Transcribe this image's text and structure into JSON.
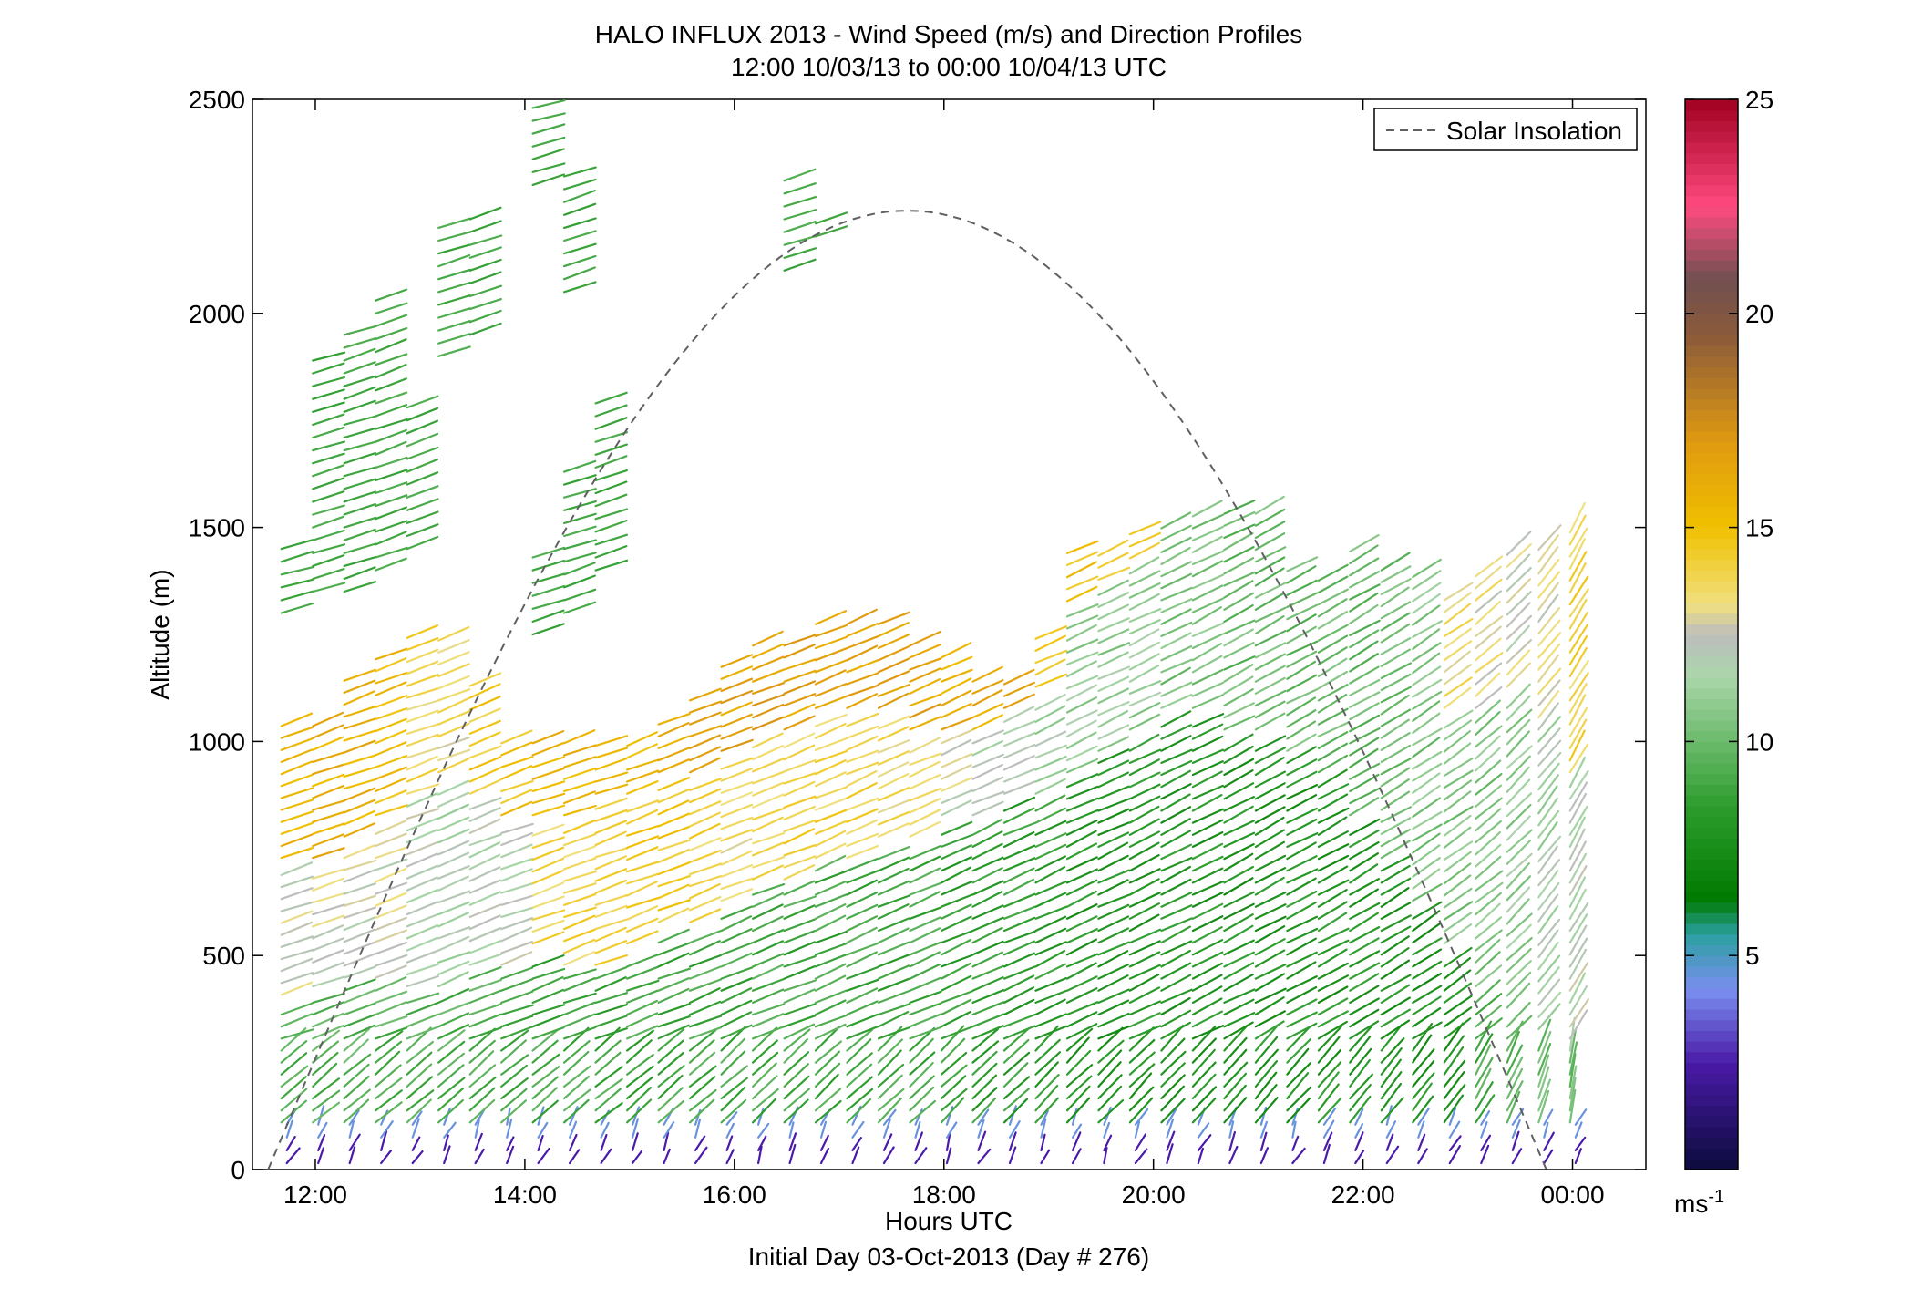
{
  "chart_data": {
    "type": "wind-barb-profile",
    "title": "HALO INFLUX 2013 - Wind Speed (m/s) and Direction Profiles",
    "subtitle": "12:00 10/03/13 to 00:00 10/04/13  UTC",
    "xlabel": "Hours UTC",
    "xlabel2": "Initial Day 03-Oct-2013 (Day # 276)",
    "ylabel": "Altitude (m)",
    "xlim_hours": [
      11.4,
      24.7
    ],
    "ylim": [
      0,
      2500
    ],
    "x_ticks": [
      {
        "hour": 12,
        "label": "12:00"
      },
      {
        "hour": 14,
        "label": "14:00"
      },
      {
        "hour": 16,
        "label": "16:00"
      },
      {
        "hour": 18,
        "label": "18:00"
      },
      {
        "hour": 20,
        "label": "20:00"
      },
      {
        "hour": 22,
        "label": "22:00"
      },
      {
        "hour": 24,
        "label": "00:00"
      }
    ],
    "y_ticks": [
      0,
      500,
      1000,
      1500,
      2000,
      2500
    ],
    "colorbar": {
      "label": "ms",
      "label_superscript": "-1",
      "range": [
        0,
        25
      ],
      "ticks": [
        5,
        10,
        15,
        20,
        25
      ],
      "stops": [
        {
          "v": 0,
          "c": "#0b0b3a"
        },
        {
          "v": 2.5,
          "c": "#4a1aa8"
        },
        {
          "v": 4.2,
          "c": "#7a8ef0"
        },
        {
          "v": 5.5,
          "c": "#2aa0a0"
        },
        {
          "v": 6.3,
          "c": "#007a00"
        },
        {
          "v": 8.5,
          "c": "#2d9d2d"
        },
        {
          "v": 11.5,
          "c": "#a9d6a9"
        },
        {
          "v": 12.5,
          "c": "#bdbdbd"
        },
        {
          "v": 13.2,
          "c": "#f0e080"
        },
        {
          "v": 15,
          "c": "#f0c000"
        },
        {
          "v": 17,
          "c": "#e09a10"
        },
        {
          "v": 19.5,
          "c": "#8a5a3a"
        },
        {
          "v": 20.8,
          "c": "#705050"
        },
        {
          "v": 22.5,
          "c": "#ff4a80"
        },
        {
          "v": 25,
          "c": "#a00020"
        }
      ]
    },
    "legend": {
      "position": "top-right",
      "entries": [
        {
          "label": "Solar Insolation",
          "style": "dashed",
          "color": "#606060"
        }
      ]
    },
    "solar_insolation": {
      "start_hour": 11.55,
      "peak_hour": 17.65,
      "end_hour": 23.75,
      "peak_altitude_equiv": 2240
    },
    "profiles": [
      {
        "hour": 11.85,
        "top": 1050,
        "dir": 19,
        "segments": [
          {
            "top": 380,
            "speed": 9.5
          },
          {
            "top": 700,
            "speed": 12.5
          },
          {
            "top": 1050,
            "speed": 15.5
          }
        ]
      },
      {
        "hour": 12.15,
        "top": 1050,
        "dir": 20,
        "segments": [
          {
            "top": 400,
            "speed": 9.5
          },
          {
            "top": 700,
            "speed": 12.5
          },
          {
            "top": 1050,
            "speed": 15.8
          }
        ]
      },
      {
        "hour": 12.45,
        "top": 1150,
        "dir": 20,
        "segments": [
          {
            "top": 420,
            "speed": 9.5
          },
          {
            "top": 750,
            "speed": 12.5
          },
          {
            "top": 1150,
            "speed": 15.8
          }
        ]
      },
      {
        "hour": 12.75,
        "top": 1200,
        "dir": 20,
        "segments": [
          {
            "top": 420,
            "speed": 9.5
          },
          {
            "top": 800,
            "speed": 12.5
          },
          {
            "top": 1200,
            "speed": 15.2
          }
        ]
      },
      {
        "hour": 13.05,
        "top": 1250,
        "dir": 20,
        "segments": [
          {
            "top": 400,
            "speed": 9.5
          },
          {
            "top": 850,
            "speed": 12
          },
          {
            "top": 1250,
            "speed": 13.8
          }
        ]
      },
      {
        "hour": 13.35,
        "top": 1250,
        "dir": 22,
        "segments": [
          {
            "top": 400,
            "speed": 9.5
          },
          {
            "top": 900,
            "speed": 11.5
          },
          {
            "top": 1250,
            "speed": 13.5
          }
        ]
      },
      {
        "hour": 13.65,
        "top": 1150,
        "dir": 22,
        "segments": [
          {
            "top": 450,
            "speed": 9.5
          },
          {
            "top": 850,
            "speed": 12
          },
          {
            "top": 1150,
            "speed": 14.5
          }
        ]
      },
      {
        "hour": 13.95,
        "top": 1000,
        "dir": 20,
        "segments": [
          {
            "top": 450,
            "speed": 9
          },
          {
            "top": 800,
            "speed": 12
          },
          {
            "top": 1000,
            "speed": 15
          }
        ]
      },
      {
        "hour": 14.25,
        "top": 1000,
        "dir": 20,
        "segments": [
          {
            "top": 500,
            "speed": 9
          },
          {
            "top": 800,
            "speed": 14
          },
          {
            "top": 1000,
            "speed": 15.5
          }
        ]
      },
      {
        "hour": 14.55,
        "top": 1000,
        "dir": 20,
        "segments": [
          {
            "top": 450,
            "speed": 9
          },
          {
            "top": 800,
            "speed": 14
          },
          {
            "top": 1000,
            "speed": 15.5
          }
        ]
      },
      {
        "hour": 14.85,
        "top": 1000,
        "dir": 20,
        "segments": [
          {
            "top": 450,
            "speed": 9
          },
          {
            "top": 850,
            "speed": 14
          },
          {
            "top": 1000,
            "speed": 15.5
          }
        ]
      },
      {
        "hour": 15.15,
        "top": 1000,
        "dir": 21,
        "segments": [
          {
            "top": 500,
            "speed": 9
          },
          {
            "top": 850,
            "speed": 14.5
          },
          {
            "top": 1000,
            "speed": 15.5
          }
        ]
      },
      {
        "hour": 15.45,
        "top": 1050,
        "dir": 21,
        "segments": [
          {
            "top": 550,
            "speed": 9
          },
          {
            "top": 900,
            "speed": 14.5
          },
          {
            "top": 1050,
            "speed": 16
          }
        ]
      },
      {
        "hour": 15.75,
        "top": 1100,
        "dir": 22,
        "segments": [
          {
            "top": 550,
            "speed": 9
          },
          {
            "top": 900,
            "speed": 14
          },
          {
            "top": 1100,
            "speed": 16.2
          }
        ]
      },
      {
        "hour": 16.05,
        "top": 1200,
        "dir": 22,
        "segments": [
          {
            "top": 600,
            "speed": 9
          },
          {
            "top": 950,
            "speed": 13.5
          },
          {
            "top": 1200,
            "speed": 16.5
          }
        ]
      },
      {
        "hour": 16.35,
        "top": 1250,
        "dir": 22,
        "segments": [
          {
            "top": 650,
            "speed": 9
          },
          {
            "top": 1000,
            "speed": 14
          },
          {
            "top": 1250,
            "speed": 16.5
          }
        ]
      },
      {
        "hour": 16.65,
        "top": 1250,
        "dir": 22,
        "segments": [
          {
            "top": 650,
            "speed": 9
          },
          {
            "top": 1000,
            "speed": 14
          },
          {
            "top": 1250,
            "speed": 16.5
          }
        ]
      },
      {
        "hour": 16.95,
        "top": 1300,
        "dir": 23,
        "segments": [
          {
            "top": 700,
            "speed": 9
          },
          {
            "top": 1050,
            "speed": 14
          },
          {
            "top": 1300,
            "speed": 16.5
          }
        ]
      },
      {
        "hour": 17.25,
        "top": 1300,
        "dir": 23,
        "segments": [
          {
            "top": 700,
            "speed": 9
          },
          {
            "top": 1050,
            "speed": 14
          },
          {
            "top": 1300,
            "speed": 16.5
          }
        ]
      },
      {
        "hour": 17.55,
        "top": 1300,
        "dir": 23,
        "segments": [
          {
            "top": 750,
            "speed": 9
          },
          {
            "top": 1050,
            "speed": 13.5
          },
          {
            "top": 1300,
            "speed": 16.5
          }
        ]
      },
      {
        "hour": 17.85,
        "top": 1250,
        "dir": 23,
        "segments": [
          {
            "top": 750,
            "speed": 9
          },
          {
            "top": 1000,
            "speed": 13.5
          },
          {
            "top": 1250,
            "speed": 16.5
          }
        ]
      },
      {
        "hour": 18.15,
        "top": 1200,
        "dir": 24,
        "segments": [
          {
            "top": 800,
            "speed": 8.5
          },
          {
            "top": 1000,
            "speed": 12.5
          },
          {
            "top": 1200,
            "speed": 16
          }
        ]
      },
      {
        "hour": 18.45,
        "top": 1150,
        "dir": 24,
        "segments": [
          {
            "top": 800,
            "speed": 8.5
          },
          {
            "top": 1000,
            "speed": 12
          },
          {
            "top": 1150,
            "speed": 16
          }
        ]
      },
      {
        "hour": 18.75,
        "top": 1150,
        "dir": 24,
        "segments": [
          {
            "top": 850,
            "speed": 8.5
          },
          {
            "top": 1050,
            "speed": 12
          },
          {
            "top": 1150,
            "speed": 16
          }
        ]
      },
      {
        "hour": 19.05,
        "top": 1250,
        "dir": 25,
        "segments": [
          {
            "top": 850,
            "speed": 8.5
          },
          {
            "top": 1100,
            "speed": 11.5
          },
          {
            "top": 1250,
            "speed": 15
          }
        ]
      },
      {
        "hour": 19.35,
        "top": 1450,
        "dir": 25,
        "segments": [
          {
            "top": 900,
            "speed": 8
          },
          {
            "top": 1300,
            "speed": 11
          },
          {
            "top": 1450,
            "speed": 14.8
          }
        ]
      },
      {
        "hour": 19.65,
        "top": 1450,
        "dir": 25,
        "segments": [
          {
            "top": 950,
            "speed": 8
          },
          {
            "top": 1350,
            "speed": 11
          },
          {
            "top": 1450,
            "speed": 14.5
          }
        ]
      },
      {
        "hour": 19.95,
        "top": 1500,
        "dir": 26,
        "segments": [
          {
            "top": 1000,
            "speed": 8
          },
          {
            "top": 1400,
            "speed": 11
          },
          {
            "top": 1500,
            "speed": 14
          }
        ]
      },
      {
        "hour": 20.25,
        "top": 1500,
        "dir": 26,
        "segments": [
          {
            "top": 1050,
            "speed": 8
          },
          {
            "top": 1500,
            "speed": 10.5
          }
        ]
      },
      {
        "hour": 20.55,
        "top": 1550,
        "dir": 27,
        "segments": [
          {
            "top": 1050,
            "speed": 8
          },
          {
            "top": 1550,
            "speed": 10.5
          }
        ]
      },
      {
        "hour": 20.85,
        "top": 1550,
        "dir": 27,
        "segments": [
          {
            "top": 1000,
            "speed": 8
          },
          {
            "top": 1550,
            "speed": 10
          }
        ]
      },
      {
        "hour": 21.15,
        "top": 1550,
        "dir": 28,
        "segments": [
          {
            "top": 1000,
            "speed": 8
          },
          {
            "top": 1550,
            "speed": 10
          }
        ]
      },
      {
        "hour": 21.45,
        "top": 1400,
        "dir": 28,
        "segments": [
          {
            "top": 950,
            "speed": 8
          },
          {
            "top": 1400,
            "speed": 10
          }
        ]
      },
      {
        "hour": 21.75,
        "top": 1400,
        "dir": 29,
        "segments": [
          {
            "top": 900,
            "speed": 8
          },
          {
            "top": 1400,
            "speed": 10
          }
        ]
      },
      {
        "hour": 22.05,
        "top": 1450,
        "dir": 30,
        "segments": [
          {
            "top": 800,
            "speed": 8
          },
          {
            "top": 1450,
            "speed": 10
          }
        ]
      },
      {
        "hour": 22.35,
        "top": 1400,
        "dir": 31,
        "segments": [
          {
            "top": 700,
            "speed": 8
          },
          {
            "top": 1400,
            "speed": 10
          }
        ]
      },
      {
        "hour": 22.65,
        "top": 1400,
        "dir": 33,
        "segments": [
          {
            "top": 600,
            "speed": 8
          },
          {
            "top": 1400,
            "speed": 10.5
          }
        ]
      },
      {
        "hour": 22.95,
        "top": 1350,
        "dir": 35,
        "segments": [
          {
            "top": 500,
            "speed": 8
          },
          {
            "top": 1050,
            "speed": 10.5
          },
          {
            "top": 1350,
            "speed": 13.5
          }
        ]
      },
      {
        "hour": 23.25,
        "top": 1400,
        "dir": 40,
        "segments": [
          {
            "top": 400,
            "speed": 9
          },
          {
            "top": 1050,
            "speed": 10.5
          },
          {
            "top": 1400,
            "speed": 13
          }
        ]
      },
      {
        "hour": 23.55,
        "top": 1450,
        "dir": 45,
        "segments": [
          {
            "top": 350,
            "speed": 9.5
          },
          {
            "top": 1100,
            "speed": 11
          },
          {
            "top": 1450,
            "speed": 12.5
          }
        ]
      },
      {
        "hour": 23.85,
        "top": 1450,
        "dir": 52,
        "segments": [
          {
            "top": 300,
            "speed": 10
          },
          {
            "top": 1000,
            "speed": 11.5
          },
          {
            "top": 1450,
            "speed": 13
          }
        ]
      },
      {
        "hour": 24.15,
        "top": 1500,
        "dir": 60,
        "segments": [
          {
            "top": 250,
            "speed": 10
          },
          {
            "top": 900,
            "speed": 12
          },
          {
            "top": 1500,
            "speed": 14
          }
        ]
      }
    ],
    "upper_layer": [
      {
        "hour": 11.85,
        "from": 1300,
        "to": 1450,
        "dir": 15,
        "speed": 9
      },
      {
        "hour": 12.15,
        "from": 1350,
        "to": 1900,
        "dir": 17,
        "speed": 9
      },
      {
        "hour": 12.45,
        "from": 1350,
        "to": 1950,
        "dir": 18,
        "speed": 9
      },
      {
        "hour": 12.75,
        "from": 1400,
        "to": 2050,
        "dir": 20,
        "speed": 9
      },
      {
        "hour": 13.05,
        "from": 1450,
        "to": 1800,
        "dir": 20,
        "speed": 9
      },
      {
        "hour": 13.35,
        "from": 1900,
        "to": 2200,
        "dir": 18,
        "speed": 9
      },
      {
        "hour": 13.65,
        "from": 1950,
        "to": 2230,
        "dir": 19,
        "speed": 9
      },
      {
        "hour": 14.25,
        "from": 1250,
        "to": 1450,
        "dir": 18,
        "speed": 9
      },
      {
        "hour": 14.25,
        "from": 2300,
        "to": 2500,
        "dir": 16,
        "speed": 9
      },
      {
        "hour": 14.55,
        "from": 1300,
        "to": 1650,
        "dir": 18,
        "speed": 9
      },
      {
        "hour": 14.55,
        "from": 2050,
        "to": 2330,
        "dir": 18,
        "speed": 9
      },
      {
        "hour": 14.85,
        "from": 1400,
        "to": 1800,
        "dir": 20,
        "speed": 9
      },
      {
        "hour": 16.65,
        "from": 2100,
        "to": 2330,
        "dir": 18,
        "speed": 9
      },
      {
        "hour": 16.95,
        "from": 2180,
        "to": 2230,
        "dir": 17,
        "speed": 9
      }
    ]
  }
}
